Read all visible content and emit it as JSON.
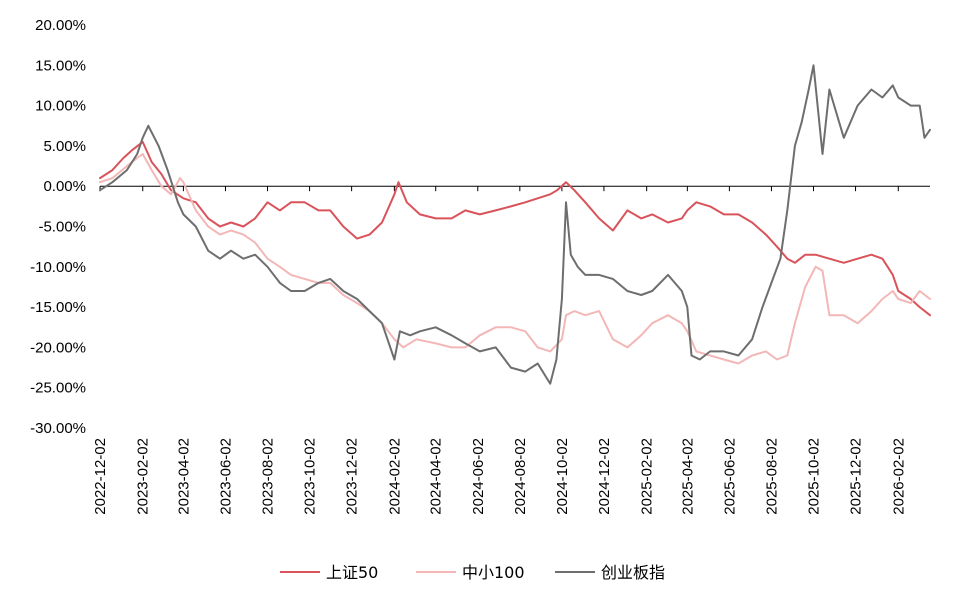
{
  "chart_data": {
    "type": "line",
    "title": "",
    "xlabel": "",
    "ylabel": "",
    "ylim": [
      -0.3,
      0.2
    ],
    "y_tick_labels": [
      "20.00%",
      "15.00%",
      "10.00%",
      "5.00%",
      "0.00%",
      "-5.00%",
      "-10.00%",
      "-15.00%",
      "-20.00%",
      "-25.00%",
      "-30.00%"
    ],
    "y_ticks": [
      0.2,
      0.15,
      0.1,
      0.05,
      0.0,
      -0.05,
      -0.1,
      -0.15,
      -0.2,
      -0.25,
      -0.3
    ],
    "xlim": [
      "2022-12-02",
      "2026-03-20"
    ],
    "x_tick_labels": [
      "2022-12-02",
      "2023-02-02",
      "2023-04-02",
      "2023-06-02",
      "2023-08-02",
      "2023-10-02",
      "2023-12-02",
      "2024-02-02",
      "2024-04-02",
      "2024-06-02",
      "2024-08-02",
      "2024-10-02",
      "2024-12-02",
      "2025-02-02",
      "2025-04-02",
      "2025-06-02",
      "2025-08-02",
      "2025-10-02",
      "2025-12-02",
      "2026-02-02"
    ],
    "grid": false,
    "legend_position": "bottom",
    "series": [
      {
        "name": "上证50",
        "color": "#d9535a",
        "points": [
          [
            "2022-12-02",
            0.01
          ],
          [
            "2022-12-20",
            0.02
          ],
          [
            "2023-01-05",
            0.035
          ],
          [
            "2023-01-18",
            0.045
          ],
          [
            "2023-02-02",
            0.055
          ],
          [
            "2023-02-15",
            0.03
          ],
          [
            "2023-03-01",
            0.015
          ],
          [
            "2023-03-15",
            -0.005
          ],
          [
            "2023-04-02",
            -0.015
          ],
          [
            "2023-04-20",
            -0.02
          ],
          [
            "2023-05-08",
            -0.04
          ],
          [
            "2023-05-25",
            -0.05
          ],
          [
            "2023-06-10",
            -0.045
          ],
          [
            "2023-06-28",
            -0.05
          ],
          [
            "2023-07-15",
            -0.04
          ],
          [
            "2023-08-02",
            -0.02
          ],
          [
            "2023-08-20",
            -0.03
          ],
          [
            "2023-09-05",
            -0.02
          ],
          [
            "2023-09-25",
            -0.02
          ],
          [
            "2023-10-15",
            -0.03
          ],
          [
            "2023-11-01",
            -0.03
          ],
          [
            "2023-11-20",
            -0.05
          ],
          [
            "2023-12-10",
            -0.065
          ],
          [
            "2023-12-28",
            -0.06
          ],
          [
            "2024-01-15",
            -0.045
          ],
          [
            "2024-02-02",
            -0.01
          ],
          [
            "2024-02-08",
            0.005
          ],
          [
            "2024-02-20",
            -0.02
          ],
          [
            "2024-03-10",
            -0.035
          ],
          [
            "2024-04-02",
            -0.04
          ],
          [
            "2024-04-25",
            -0.04
          ],
          [
            "2024-05-15",
            -0.03
          ],
          [
            "2024-06-05",
            -0.035
          ],
          [
            "2024-06-28",
            -0.03
          ],
          [
            "2024-07-20",
            -0.025
          ],
          [
            "2024-08-10",
            -0.02
          ],
          [
            "2024-08-28",
            -0.015
          ],
          [
            "2024-09-15",
            -0.01
          ],
          [
            "2024-09-25",
            -0.005
          ],
          [
            "2024-10-08",
            0.005
          ],
          [
            "2024-10-20",
            -0.005
          ],
          [
            "2024-11-05",
            -0.02
          ],
          [
            "2024-11-25",
            -0.04
          ],
          [
            "2024-12-15",
            -0.055
          ],
          [
            "2025-01-05",
            -0.03
          ],
          [
            "2025-01-25",
            -0.04
          ],
          [
            "2025-02-10",
            -0.035
          ],
          [
            "2025-03-05",
            -0.045
          ],
          [
            "2025-03-25",
            -0.04
          ],
          [
            "2025-04-02",
            -0.03
          ],
          [
            "2025-04-15",
            -0.02
          ],
          [
            "2025-05-05",
            -0.025
          ],
          [
            "2025-05-25",
            -0.035
          ],
          [
            "2025-06-15",
            -0.035
          ],
          [
            "2025-07-05",
            -0.045
          ],
          [
            "2025-07-25",
            -0.06
          ],
          [
            "2025-08-10",
            -0.075
          ],
          [
            "2025-08-25",
            -0.09
          ],
          [
            "2025-09-05",
            -0.095
          ],
          [
            "2025-09-20",
            -0.085
          ],
          [
            "2025-10-05",
            -0.085
          ],
          [
            "2025-10-25",
            -0.09
          ],
          [
            "2025-11-15",
            -0.095
          ],
          [
            "2025-12-05",
            -0.09
          ],
          [
            "2025-12-25",
            -0.085
          ],
          [
            "2026-01-10",
            -0.09
          ],
          [
            "2026-01-25",
            -0.11
          ],
          [
            "2026-02-02",
            -0.13
          ],
          [
            "2026-02-20",
            -0.14
          ],
          [
            "2026-03-05",
            -0.15
          ],
          [
            "2026-03-20",
            -0.16
          ]
        ]
      },
      {
        "name": "中小100",
        "color": "#f2b7b6",
        "points": [
          [
            "2022-12-02",
            0.005
          ],
          [
            "2022-12-20",
            0.01
          ],
          [
            "2023-01-10",
            0.025
          ],
          [
            "2023-01-25",
            0.035
          ],
          [
            "2023-02-02",
            0.04
          ],
          [
            "2023-02-15",
            0.02
          ],
          [
            "2023-03-01",
            0.0
          ],
          [
            "2023-03-15",
            -0.01
          ],
          [
            "2023-03-28",
            0.01
          ],
          [
            "2023-04-02",
            0.005
          ],
          [
            "2023-04-20",
            -0.03
          ],
          [
            "2023-05-08",
            -0.05
          ],
          [
            "2023-05-25",
            -0.06
          ],
          [
            "2023-06-10",
            -0.055
          ],
          [
            "2023-06-28",
            -0.06
          ],
          [
            "2023-07-15",
            -0.07
          ],
          [
            "2023-08-02",
            -0.09
          ],
          [
            "2023-08-20",
            -0.1
          ],
          [
            "2023-09-05",
            -0.11
          ],
          [
            "2023-09-25",
            -0.115
          ],
          [
            "2023-10-15",
            -0.12
          ],
          [
            "2023-11-01",
            -0.12
          ],
          [
            "2023-11-20",
            -0.135
          ],
          [
            "2023-12-10",
            -0.145
          ],
          [
            "2023-12-28",
            -0.155
          ],
          [
            "2024-01-15",
            -0.17
          ],
          [
            "2024-02-02",
            -0.19
          ],
          [
            "2024-02-15",
            -0.2
          ],
          [
            "2024-03-05",
            -0.19
          ],
          [
            "2024-04-02",
            -0.195
          ],
          [
            "2024-04-25",
            -0.2
          ],
          [
            "2024-05-15",
            -0.2
          ],
          [
            "2024-06-05",
            -0.185
          ],
          [
            "2024-06-28",
            -0.175
          ],
          [
            "2024-07-20",
            -0.175
          ],
          [
            "2024-08-10",
            -0.18
          ],
          [
            "2024-08-28",
            -0.2
          ],
          [
            "2024-09-15",
            -0.205
          ],
          [
            "2024-10-02",
            -0.19
          ],
          [
            "2024-10-08",
            -0.16
          ],
          [
            "2024-10-20",
            -0.155
          ],
          [
            "2024-11-05",
            -0.16
          ],
          [
            "2024-11-25",
            -0.155
          ],
          [
            "2024-12-15",
            -0.19
          ],
          [
            "2025-01-05",
            -0.2
          ],
          [
            "2025-01-25",
            -0.185
          ],
          [
            "2025-02-10",
            -0.17
          ],
          [
            "2025-03-05",
            -0.16
          ],
          [
            "2025-03-25",
            -0.17
          ],
          [
            "2025-04-02",
            -0.18
          ],
          [
            "2025-04-15",
            -0.205
          ],
          [
            "2025-05-05",
            -0.21
          ],
          [
            "2025-05-25",
            -0.215
          ],
          [
            "2025-06-15",
            -0.22
          ],
          [
            "2025-07-05",
            -0.21
          ],
          [
            "2025-07-25",
            -0.205
          ],
          [
            "2025-08-10",
            -0.215
          ],
          [
            "2025-08-25",
            -0.21
          ],
          [
            "2025-09-05",
            -0.17
          ],
          [
            "2025-09-20",
            -0.125
          ],
          [
            "2025-10-05",
            -0.1
          ],
          [
            "2025-10-15",
            -0.105
          ],
          [
            "2025-10-25",
            -0.16
          ],
          [
            "2025-11-15",
            -0.16
          ],
          [
            "2025-12-05",
            -0.17
          ],
          [
            "2025-12-25",
            -0.155
          ],
          [
            "2026-01-10",
            -0.14
          ],
          [
            "2026-01-25",
            -0.13
          ],
          [
            "2026-02-02",
            -0.14
          ],
          [
            "2026-02-20",
            -0.145
          ],
          [
            "2026-03-05",
            -0.13
          ],
          [
            "2026-03-20",
            -0.14
          ]
        ]
      },
      {
        "name": "创业板指",
        "color": "#6e6e6e",
        "points": [
          [
            "2022-12-02",
            -0.005
          ],
          [
            "2022-12-20",
            0.005
          ],
          [
            "2023-01-10",
            0.02
          ],
          [
            "2023-01-25",
            0.04
          ],
          [
            "2023-02-02",
            0.06
          ],
          [
            "2023-02-10",
            0.075
          ],
          [
            "2023-02-25",
            0.05
          ],
          [
            "2023-03-10",
            0.02
          ],
          [
            "2023-03-25",
            -0.02
          ],
          [
            "2023-04-02",
            -0.035
          ],
          [
            "2023-04-20",
            -0.05
          ],
          [
            "2023-05-08",
            -0.08
          ],
          [
            "2023-05-25",
            -0.09
          ],
          [
            "2023-06-10",
            -0.08
          ],
          [
            "2023-06-28",
            -0.09
          ],
          [
            "2023-07-15",
            -0.085
          ],
          [
            "2023-08-02",
            -0.1
          ],
          [
            "2023-08-20",
            -0.12
          ],
          [
            "2023-09-05",
            -0.13
          ],
          [
            "2023-09-25",
            -0.13
          ],
          [
            "2023-10-15",
            -0.12
          ],
          [
            "2023-11-01",
            -0.115
          ],
          [
            "2023-11-20",
            -0.13
          ],
          [
            "2023-12-10",
            -0.14
          ],
          [
            "2023-12-28",
            -0.155
          ],
          [
            "2024-01-15",
            -0.17
          ],
          [
            "2024-02-02",
            -0.215
          ],
          [
            "2024-02-10",
            -0.18
          ],
          [
            "2024-02-25",
            -0.185
          ],
          [
            "2024-03-10",
            -0.18
          ],
          [
            "2024-04-02",
            -0.175
          ],
          [
            "2024-04-25",
            -0.185
          ],
          [
            "2024-05-15",
            -0.195
          ],
          [
            "2024-06-05",
            -0.205
          ],
          [
            "2024-06-28",
            -0.2
          ],
          [
            "2024-07-20",
            -0.225
          ],
          [
            "2024-08-10",
            -0.23
          ],
          [
            "2024-08-28",
            -0.22
          ],
          [
            "2024-09-15",
            -0.245
          ],
          [
            "2024-09-24",
            -0.215
          ],
          [
            "2024-10-02",
            -0.14
          ],
          [
            "2024-10-08",
            -0.02
          ],
          [
            "2024-10-15",
            -0.085
          ],
          [
            "2024-10-25",
            -0.1
          ],
          [
            "2024-11-05",
            -0.11
          ],
          [
            "2024-11-25",
            -0.11
          ],
          [
            "2024-12-15",
            -0.115
          ],
          [
            "2025-01-05",
            -0.13
          ],
          [
            "2025-01-25",
            -0.135
          ],
          [
            "2025-02-10",
            -0.13
          ],
          [
            "2025-03-05",
            -0.11
          ],
          [
            "2025-03-25",
            -0.13
          ],
          [
            "2025-04-02",
            -0.15
          ],
          [
            "2025-04-08",
            -0.21
          ],
          [
            "2025-04-20",
            -0.215
          ],
          [
            "2025-05-05",
            -0.205
          ],
          [
            "2025-05-25",
            -0.205
          ],
          [
            "2025-06-15",
            -0.21
          ],
          [
            "2025-07-05",
            -0.19
          ],
          [
            "2025-07-20",
            -0.15
          ],
          [
            "2025-08-02",
            -0.12
          ],
          [
            "2025-08-15",
            -0.09
          ],
          [
            "2025-08-25",
            -0.03
          ],
          [
            "2025-09-05",
            0.05
          ],
          [
            "2025-09-15",
            0.08
          ],
          [
            "2025-09-25",
            0.12
          ],
          [
            "2025-10-02",
            0.15
          ],
          [
            "2025-10-15",
            0.04
          ],
          [
            "2025-10-25",
            0.12
          ],
          [
            "2025-11-15",
            0.06
          ],
          [
            "2025-12-05",
            0.1
          ],
          [
            "2025-12-25",
            0.12
          ],
          [
            "2026-01-10",
            0.11
          ],
          [
            "2026-01-25",
            0.125
          ],
          [
            "2026-02-02",
            0.11
          ],
          [
            "2026-02-20",
            0.1
          ],
          [
            "2026-03-05",
            0.1
          ],
          [
            "2026-03-12",
            0.06
          ],
          [
            "2026-03-20",
            0.07
          ]
        ]
      }
    ]
  }
}
